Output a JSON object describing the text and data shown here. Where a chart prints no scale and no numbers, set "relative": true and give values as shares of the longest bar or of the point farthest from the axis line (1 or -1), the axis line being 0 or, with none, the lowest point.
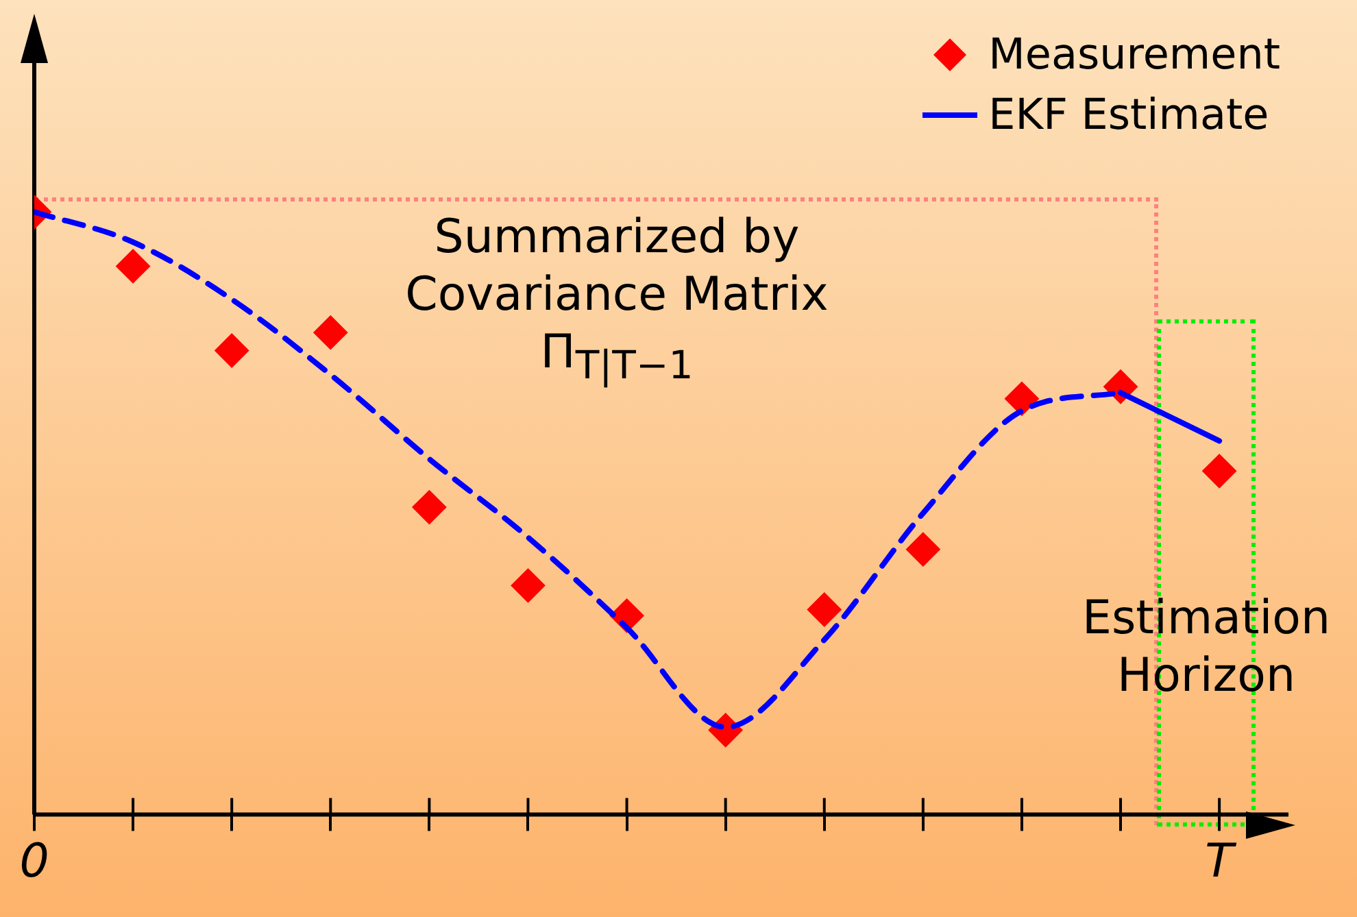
{
  "chart_data": {
    "type": "scatter",
    "relative": true,
    "legend": "top right",
    "grid": false,
    "categories": [
      "0",
      null,
      null,
      null,
      null,
      null,
      null,
      null,
      null,
      null,
      null,
      null,
      "T"
    ],
    "series": [
      {
        "name": "Measurement",
        "marker": "diamond",
        "color": "#ff0000",
        "values": [
          1,
          0.91,
          0.77,
          0.8,
          0.51,
          0.38,
          0.33,
          0.14,
          0.34,
          0.44,
          0.69,
          0.71,
          0.57
        ]
      },
      {
        "type": "line",
        "line_style": "dashed",
        "marker": "none",
        "color": "#0000ff",
        "values": [
          1,
          0.95,
          0.855,
          0.73,
          0.59,
          0.46,
          0.31,
          0.145,
          0.29,
          0.5,
          0.67,
          0.7,
          null
        ]
      },
      {
        "name": "EKF Estimate",
        "type": "line",
        "line_style": "solid",
        "marker": "none",
        "color": "#0000ff",
        "values": [
          null,
          null,
          null,
          null,
          null,
          null,
          null,
          null,
          null,
          null,
          null,
          0.7,
          0.62
        ]
      }
    ],
    "annotations": [
      "Summarized by\nCovariance Matrix\nΠ$_{T|T−1}$",
      "Estimation\nHorizon"
    ]
  }
}
